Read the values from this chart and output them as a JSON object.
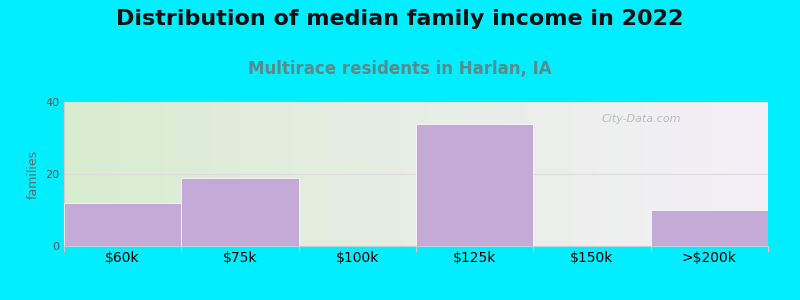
{
  "title": "Distribution of median family income in 2022",
  "subtitle": "Multirace residents in Harlan, IA",
  "categories": [
    "$60k",
    "$75k",
    "$100k",
    "$125k",
    "$150k",
    ">$200k"
  ],
  "values": [
    12,
    19,
    0,
    34,
    0,
    10
  ],
  "bar_color": "#c4aad6",
  "background_color": "#00eeff",
  "plot_bg_left": "#d8ecd0",
  "plot_bg_right": "#f5f0f8",
  "ylabel": "families",
  "ylim": [
    0,
    40
  ],
  "yticks": [
    0,
    20,
    40
  ],
  "watermark": "City-Data.com",
  "title_fontsize": 16,
  "subtitle_fontsize": 12,
  "subtitle_color": "#5a8a8a",
  "ylabel_fontsize": 9,
  "tick_label_fontsize": 8,
  "grid_color": "#dddddd",
  "spine_color": "#cccccc"
}
